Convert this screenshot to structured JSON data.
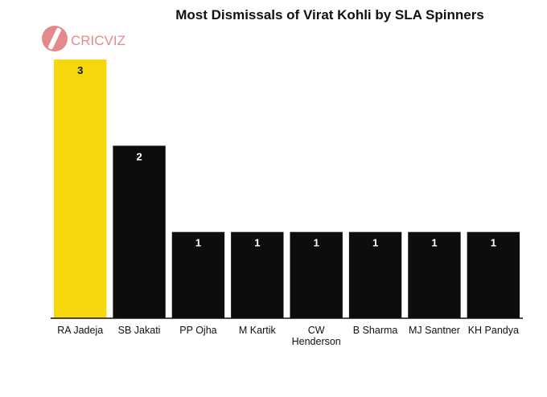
{
  "brand": {
    "name": "CRICVIZ",
    "color": "#e58a8a"
  },
  "chart_data": {
    "type": "bar",
    "title": "Most Dismissals of Virat Kohli by SLA Spinners",
    "xlabel": "",
    "ylabel": "",
    "categories": [
      "RA Jadeja",
      "SB Jakati",
      "PP Ojha",
      "M Kartik",
      "CW Henderson",
      "B Sharma",
      "MJ Santner",
      "KH Pandya"
    ],
    "category_lines": [
      [
        "RA Jadeja"
      ],
      [
        "SB Jakati"
      ],
      [
        "PP Ojha"
      ],
      [
        "M Kartik"
      ],
      [
        "CW",
        "Henderson"
      ],
      [
        "B Sharma"
      ],
      [
        "MJ Santner"
      ],
      [
        "KH Pandya"
      ]
    ],
    "values": [
      3,
      2,
      1,
      1,
      1,
      1,
      1,
      1
    ],
    "ylim": [
      0,
      3
    ],
    "grid": false,
    "legend": "none",
    "colors": {
      "highlight": "#f6d70b",
      "bar": "#0e0c0f",
      "label_on_highlight": "#111111",
      "label_on_bar": "#ffffff"
    },
    "highlight_index": 0
  }
}
